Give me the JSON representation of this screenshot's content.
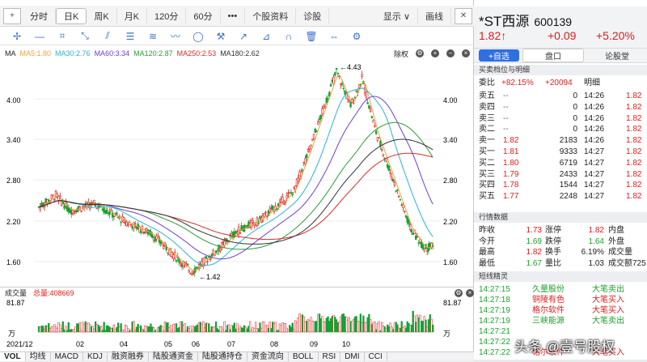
{
  "toolbar": {
    "pan_label": "+",
    "tabs": [
      "分时",
      "日K",
      "周K",
      "月K",
      "120分",
      "60分",
      "•••",
      "个股资料",
      "诊股"
    ],
    "display_label": "显示 ∨",
    "drawline_label": "画线"
  },
  "ma_bar": {
    "label": "MA",
    "items": [
      {
        "text": "MA5:1.80",
        "color": "#f2a23a"
      },
      {
        "text": "MA30:2.76",
        "color": "#2ab3d6"
      },
      {
        "text": "MA60:3.34",
        "color": "#6a3fd1"
      },
      {
        "text": "MA120:2.87",
        "color": "#2e9a3a"
      },
      {
        "text": "MA250:2.53",
        "color": "#d72b2b"
      },
      {
        "text": "MA180:2.62",
        "color": "#333333"
      }
    ],
    "rights": "除权"
  },
  "price_axis": [
    "4.00",
    "3.40",
    "2.80",
    "2.20",
    "1.60"
  ],
  "annotations": {
    "high": "←4.43",
    "low": "←1.42"
  },
  "volume": {
    "label": "成交量",
    "total": "总量:408669",
    "top": "81.87",
    "unit": "万"
  },
  "x_labels": [
    "2021/12",
    "02",
    "04",
    "05",
    "06",
    "07",
    "08",
    "09",
    "10"
  ],
  "bottom_tabs": [
    "VOL",
    "均线",
    "MACD",
    "KDJ",
    "融资融券",
    "陆股通资金",
    "陆股通持仓",
    "资金流向",
    "BOLL",
    "RSI",
    "DMI",
    "CCI"
  ],
  "stock": {
    "name": "*ST西源",
    "code": "600139",
    "price": "1.82↑",
    "change": "+0.09",
    "pct": "+5.20%"
  },
  "tabs": {
    "add": "+自选",
    "quote": "盘口",
    "forum": "论股堂"
  },
  "book_header": "买卖档位与明细",
  "weibi": {
    "label": "委比",
    "ratio": "+82.15%",
    "diff": "+20094",
    "detail": "明细"
  },
  "sells": [
    {
      "name": "卖五",
      "price": "--",
      "vol": "0"
    },
    {
      "name": "卖四",
      "price": "--",
      "vol": "0"
    },
    {
      "name": "卖三",
      "price": "--",
      "vol": "0"
    },
    {
      "name": "卖二",
      "price": "--",
      "vol": "0"
    },
    {
      "name": "卖一",
      "price": "1.82",
      "vol": "2183"
    }
  ],
  "buys": [
    {
      "name": "买一",
      "price": "1.81",
      "vol": "9333"
    },
    {
      "name": "买二",
      "price": "1.80",
      "vol": "6719"
    },
    {
      "name": "买三",
      "price": "1.79",
      "vol": "2433"
    },
    {
      "name": "买四",
      "price": "1.78",
      "vol": "1544"
    },
    {
      "name": "买五",
      "price": "1.77",
      "vol": "2248"
    }
  ],
  "detail": [
    {
      "t": "14:26",
      "p": "1.82"
    },
    {
      "t": "14:26",
      "p": "1.82"
    },
    {
      "t": "14:26",
      "p": "1.82"
    },
    {
      "t": "14:26",
      "p": "1.82"
    },
    {
      "t": "14:26",
      "p": "1.82"
    },
    {
      "t": "14:27",
      "p": "1.82"
    },
    {
      "t": "14:27",
      "p": "1.82"
    },
    {
      "t": "14:27",
      "p": "1.82"
    },
    {
      "t": "14:27",
      "p": "1.82"
    },
    {
      "t": "14:27",
      "p": "1.82"
    }
  ],
  "market_header": "行情数据",
  "market": [
    {
      "a": "昨收",
      "av": "1.73",
      "b": "涨停",
      "bv": "1.82",
      "c": "内盘"
    },
    {
      "a": "今开",
      "av": "1.69",
      "b": "跌停",
      "bv": "1.64",
      "c": "外盘"
    },
    {
      "a": "最高",
      "av": "1.82",
      "b": "换手",
      "bv": "6.19%",
      "c": "成交量"
    },
    {
      "a": "最低",
      "av": "1.67",
      "b": "量比",
      "bv": "1.03",
      "c": "成交额725"
    }
  ],
  "news_header": "短线精灵",
  "news": [
    {
      "t": "14:27:15",
      "name": "久量股份",
      "act": "大笔卖出"
    },
    {
      "t": "14:27:18",
      "name": "铜陵有色",
      "act": "大笔买入"
    },
    {
      "t": "14:27:19",
      "name": "格尔软件",
      "act": "大笔买入"
    },
    {
      "t": "14:27:19",
      "name": "三峡能源",
      "act": "大笔卖出"
    },
    {
      "t": "14:27:21",
      "name": "",
      "act": ""
    },
    {
      "t": "14:27:22",
      "name": "",
      "act": ""
    },
    {
      "t": "14:27:22",
      "name": "格尔软件",
      "act": "大笔买入"
    }
  ],
  "watermark": "头条 @壹号股权"
}
